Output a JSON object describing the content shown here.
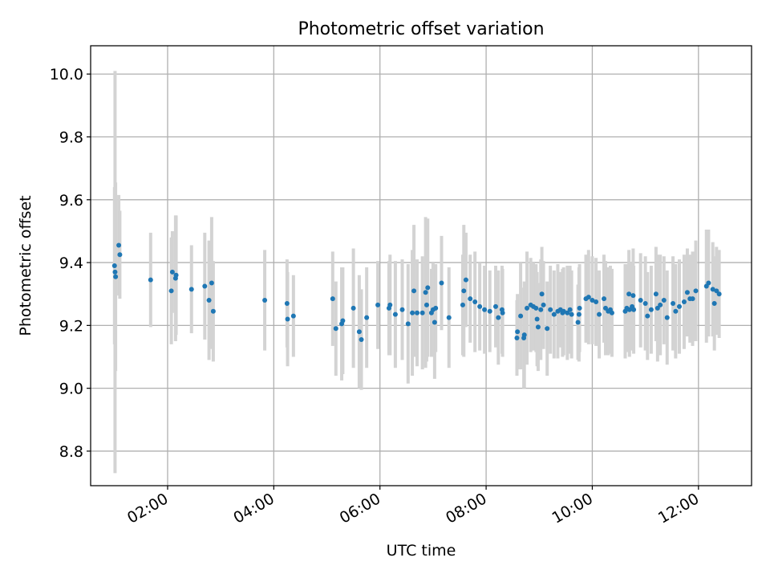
{
  "chart_data": {
    "type": "scatter",
    "title": "Photometric offset variation",
    "xlabel": "UTC time",
    "ylabel": "Photometric offset",
    "grid": true,
    "xlim_hours": [
      0.55,
      13.0
    ],
    "ylim": [
      8.69,
      10.09
    ],
    "x_ticks": [
      {
        "value": 2,
        "label": "02:00"
      },
      {
        "value": 4,
        "label": "04:00"
      },
      {
        "value": 6,
        "label": "06:00"
      },
      {
        "value": 8,
        "label": "08:00"
      },
      {
        "value": 10,
        "label": "10:00"
      },
      {
        "value": 12,
        "label": "12:00"
      }
    ],
    "y_ticks": [
      {
        "value": 8.8,
        "label": "8.8"
      },
      {
        "value": 9.0,
        "label": "9.0"
      },
      {
        "value": 9.2,
        "label": "9.2"
      },
      {
        "value": 9.4,
        "label": "9.4"
      },
      {
        "value": 9.6,
        "label": "9.6"
      },
      {
        "value": 9.8,
        "label": "9.8"
      },
      {
        "value": 10.0,
        "label": "10.0"
      }
    ],
    "colors": {
      "points": "#1f77b4",
      "errorbars": "#d3d3d3",
      "grid": "#b0b0b0",
      "axes": "#000000"
    },
    "series": [
      {
        "name": "offset",
        "x_hours": [
          1.0,
          1.01,
          1.02,
          1.08,
          1.1,
          1.68,
          2.07,
          2.09,
          2.15,
          2.16,
          2.45,
          2.7,
          2.78,
          2.83,
          2.86,
          3.83,
          4.25,
          4.26,
          4.37,
          5.11,
          5.17,
          5.28,
          5.3,
          5.5,
          5.61,
          5.65,
          5.75,
          5.96,
          6.17,
          6.19,
          6.29,
          6.42,
          6.53,
          6.61,
          6.64,
          6.7,
          6.8,
          6.86,
          6.88,
          6.9,
          6.97,
          7.0,
          7.03,
          7.05,
          7.16,
          7.3,
          7.56,
          7.58,
          7.62,
          7.7,
          7.79,
          7.88,
          7.97,
          8.07,
          8.18,
          8.23,
          8.3,
          8.31,
          8.58,
          8.59,
          8.65,
          8.71,
          8.72,
          8.77,
          8.84,
          8.89,
          8.94,
          8.96,
          8.98,
          9.03,
          9.05,
          9.08,
          9.15,
          9.21,
          9.28,
          9.35,
          9.4,
          9.44,
          9.46,
          9.53,
          9.58,
          9.61,
          9.73,
          9.75,
          9.76,
          9.88,
          9.93,
          10.0,
          10.07,
          10.13,
          10.22,
          10.25,
          10.3,
          10.34,
          10.37,
          10.62,
          10.65,
          10.69,
          10.7,
          10.75,
          10.77,
          10.78,
          10.91,
          11.0,
          11.04,
          11.11,
          11.2,
          11.23,
          11.28,
          11.35,
          11.41,
          11.52,
          11.57,
          11.64,
          11.73,
          11.79,
          11.84,
          11.89,
          11.95,
          12.15,
          12.19,
          12.27,
          12.3,
          12.34,
          12.39
        ],
        "values": [
          9.39,
          9.37,
          9.355,
          9.455,
          9.425,
          9.345,
          9.31,
          9.37,
          9.35,
          9.36,
          9.315,
          9.325,
          9.28,
          9.335,
          9.245,
          9.28,
          9.27,
          9.22,
          9.23,
          9.285,
          9.19,
          9.205,
          9.215,
          9.255,
          9.18,
          9.155,
          9.225,
          9.265,
          9.255,
          9.265,
          9.235,
          9.25,
          9.205,
          9.24,
          9.31,
          9.24,
          9.24,
          9.305,
          9.265,
          9.32,
          9.24,
          9.25,
          9.21,
          9.255,
          9.335,
          9.225,
          9.265,
          9.31,
          9.345,
          9.285,
          9.275,
          9.26,
          9.25,
          9.245,
          9.26,
          9.225,
          9.25,
          9.24,
          9.16,
          9.18,
          9.23,
          9.16,
          9.17,
          9.255,
          9.265,
          9.26,
          9.255,
          9.22,
          9.195,
          9.25,
          9.3,
          9.265,
          9.19,
          9.25,
          9.235,
          9.245,
          9.25,
          9.24,
          9.245,
          9.24,
          9.25,
          9.235,
          9.21,
          9.235,
          9.255,
          9.285,
          9.29,
          9.28,
          9.275,
          9.235,
          9.285,
          9.255,
          9.245,
          9.25,
          9.24,
          9.245,
          9.255,
          9.3,
          9.25,
          9.26,
          9.295,
          9.25,
          9.28,
          9.27,
          9.23,
          9.25,
          9.3,
          9.255,
          9.265,
          9.28,
          9.225,
          9.27,
          9.245,
          9.26,
          9.275,
          9.305,
          9.285,
          9.285,
          9.31,
          9.325,
          9.335,
          9.315,
          9.27,
          9.31,
          9.3
        ],
        "errors": [
          0.25,
          0.64,
          0.3,
          0.16,
          0.14,
          0.15,
          0.17,
          0.13,
          0.2,
          0.19,
          0.14,
          0.17,
          0.19,
          0.21,
          0.16,
          0.16,
          0.14,
          0.15,
          0.13,
          0.15,
          0.15,
          0.18,
          0.17,
          0.19,
          0.18,
          0.16,
          0.16,
          0.14,
          0.15,
          0.16,
          0.17,
          0.16,
          0.19,
          0.2,
          0.21,
          0.17,
          0.18,
          0.24,
          0.18,
          0.22,
          0.14,
          0.15,
          0.18,
          0.14,
          0.15,
          0.16,
          0.16,
          0.21,
          0.15,
          0.14,
          0.16,
          0.14,
          0.14,
          0.13,
          0.13,
          0.15,
          0.14,
          0.14,
          0.12,
          0.12,
          0.17,
          0.16,
          0.17,
          0.18,
          0.15,
          0.14,
          0.14,
          0.15,
          0.14,
          0.16,
          0.15,
          0.14,
          0.15,
          0.14,
          0.14,
          0.15,
          0.12,
          0.14,
          0.14,
          0.15,
          0.14,
          0.14,
          0.12,
          0.15,
          0.14,
          0.14,
          0.15,
          0.14,
          0.14,
          0.14,
          0.14,
          0.15,
          0.14,
          0.14,
          0.14,
          0.15,
          0.14,
          0.14,
          0.15,
          0.14,
          0.15,
          0.14,
          0.15,
          0.15,
          0.14,
          0.14,
          0.15,
          0.17,
          0.16,
          0.14,
          0.15,
          0.15,
          0.15,
          0.15,
          0.15,
          0.14,
          0.14,
          0.15,
          0.16,
          0.18,
          0.17,
          0.15,
          0.15,
          0.14,
          0.14
        ]
      }
    ]
  }
}
